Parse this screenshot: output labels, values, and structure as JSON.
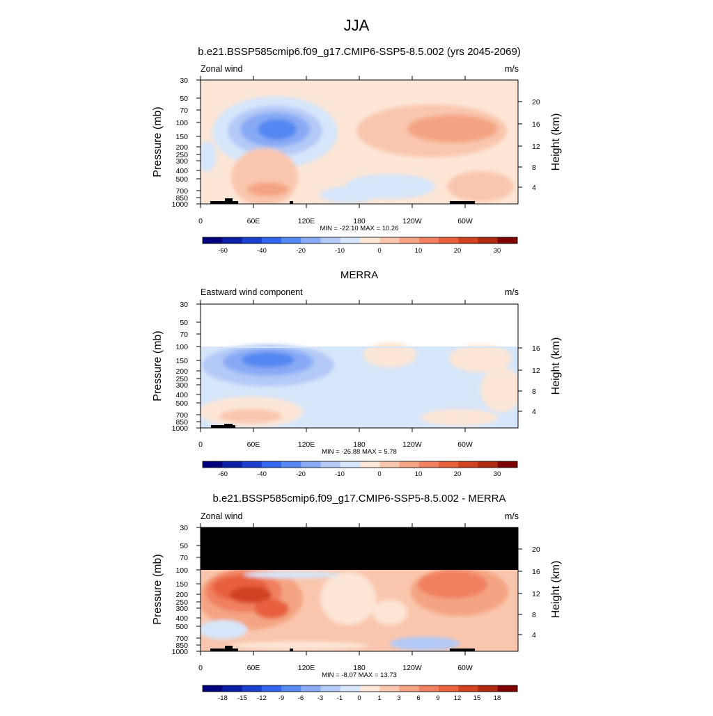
{
  "figure": {
    "title": "JJA"
  },
  "panels": [
    {
      "title": "b.e21.BSSP585cmip6.f09_g17.CMIP6-SSP5-8.5.002 (yrs 2045-2069)",
      "left_string": "Zonal wind",
      "right_string": "m/s",
      "stats": "MIN = -22.10  MAX =  10.26",
      "left_axis_label": "Pressure (mb)",
      "right_axis_label": "Height (km)",
      "pressure_ticks": [
        "30",
        "50",
        "70",
        "100",
        "150",
        "200",
        "250",
        "300",
        "400",
        "500",
        "700",
        "850",
        "1000"
      ],
      "height_ticks": [
        "20",
        "16",
        "12",
        "8",
        "4"
      ],
      "lon_ticks": [
        "0",
        "60E",
        "120E",
        "180",
        "120W",
        "60W"
      ],
      "colorbar_labels": [
        "-60",
        "-40",
        "-20",
        "-10",
        "0",
        "10",
        "20",
        "30"
      ]
    },
    {
      "title": "MERRA",
      "left_string": "Eastward wind component",
      "right_string": "m/s",
      "stats": "MIN = -26.88  MAX =   5.78",
      "left_axis_label": "Pressure (mb)",
      "right_axis_label": "Height (km)",
      "pressure_ticks": [
        "30",
        "50",
        "70",
        "100",
        "150",
        "200",
        "250",
        "300",
        "400",
        "500",
        "700",
        "850",
        "1000"
      ],
      "height_ticks": [
        "16",
        "12",
        "8",
        "4"
      ],
      "lon_ticks": [
        "0",
        "60E",
        "120E",
        "180",
        "120W",
        "60W"
      ],
      "colorbar_labels": [
        "-60",
        "-40",
        "-20",
        "-10",
        "0",
        "10",
        "20",
        "30"
      ]
    },
    {
      "title": "b.e21.BSSP585cmip6.f09_g17.CMIP6-SSP5-8.5.002 - MERRA",
      "left_string": "Zonal wind",
      "right_string": "m/s",
      "stats": "MIN = -8.07  MAX = 13.73",
      "left_axis_label": "Pressure (mb)",
      "right_axis_label": "Height (km)",
      "pressure_ticks": [
        "30",
        "50",
        "70",
        "100",
        "150",
        "200",
        "250",
        "300",
        "400",
        "500",
        "700",
        "850",
        "1000"
      ],
      "height_ticks": [
        "20",
        "16",
        "12",
        "8",
        "4"
      ],
      "lon_ticks": [
        "0",
        "60E",
        "120E",
        "180",
        "120W",
        "60W"
      ],
      "colorbar_labels": [
        "-18",
        "-15",
        "-12",
        "-9",
        "-6",
        "-3",
        "-1",
        "0",
        "1",
        "3",
        "6",
        "9",
        "12",
        "15",
        "18"
      ]
    }
  ],
  "colors": {
    "cbar_abs": [
      "#00007f",
      "#0a1fa6",
      "#1a3fcc",
      "#3366ee",
      "#5588f2",
      "#88aaf5",
      "#b3c9f7",
      "#d6e6fa",
      "#fde6d6",
      "#f9c6ad",
      "#f4a482",
      "#f08060",
      "#e8603c",
      "#d24220",
      "#b02a10",
      "#7f0000"
    ],
    "cbar_diff": [
      "#00007f",
      "#0a1fa6",
      "#1a3fcc",
      "#3366ee",
      "#5588f2",
      "#88aaf5",
      "#b3c9f7",
      "#d6e6fa",
      "#fde6d6",
      "#f9c6ad",
      "#f4a482",
      "#f08060",
      "#e8603c",
      "#d24220",
      "#b02a10",
      "#7f0000"
    ],
    "topography": "#000000",
    "missing": "#000000"
  },
  "chart_data": [
    {
      "type": "heatmap",
      "title": "b.e21.BSSP585cmip6.f09_g17.CMIP6-SSP5-8.5.002 (yrs 2045-2069)",
      "field": "Zonal wind",
      "units": "m/s",
      "x_axis": "longitude 0-360",
      "y_axis": "pressure 1000-30 mb (log)",
      "min": -22.1,
      "max": 10.26,
      "features": [
        {
          "kind": "jet",
          "sign": "easterly",
          "lon_center": 80,
          "p_center": 120,
          "peak": -22
        },
        {
          "kind": "jet",
          "sign": "westerly",
          "lon_center": 280,
          "p_center": 120,
          "peak": 10
        },
        {
          "kind": "region",
          "sign": "westerly",
          "lon_center": 50,
          "p_center": 500,
          "peak": 5
        },
        {
          "kind": "region",
          "sign": "easterly",
          "lon_center": 200,
          "p_center": 550,
          "peak": -4
        }
      ]
    },
    {
      "type": "heatmap",
      "title": "MERRA",
      "field": "Eastward wind component",
      "units": "m/s",
      "x_axis": "longitude 0-360",
      "y_axis": "pressure 1000-100 mb (log)",
      "min": -26.88,
      "max": 5.78,
      "features": [
        {
          "kind": "jet",
          "sign": "easterly",
          "lon_center": 80,
          "p_center": 150,
          "peak": -26
        },
        {
          "kind": "region",
          "sign": "westerly",
          "lon_center": 270,
          "p_center": 150,
          "peak": 5
        },
        {
          "kind": "region",
          "sign": "easterly",
          "lon_center": 180,
          "p_center": 450,
          "peak": -5
        }
      ]
    },
    {
      "type": "heatmap",
      "title": "b.e21.BSSP585cmip6.f09_g17.CMIP6-SSP5-8.5.002 - MERRA",
      "field": "Zonal wind",
      "units": "m/s",
      "x_axis": "longitude 0-360",
      "y_axis": "pressure 1000-30 mb (log)",
      "min": -8.07,
      "max": 13.73,
      "features": [
        {
          "kind": "positive",
          "lon_center": 60,
          "p_center": 200,
          "peak": 13
        },
        {
          "kind": "positive",
          "lon_center": 280,
          "p_center": 150,
          "peak": 9
        },
        {
          "kind": "missing",
          "p_range": [
            30,
            100
          ]
        }
      ]
    }
  ]
}
